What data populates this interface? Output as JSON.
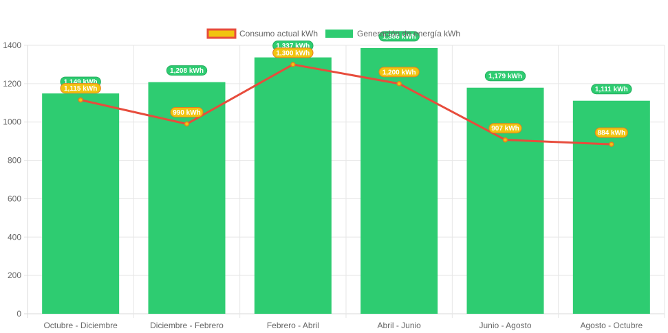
{
  "chart_data": {
    "type": "bar",
    "title": "",
    "xlabel": "",
    "ylabel": "",
    "categories": [
      "Octubre - Diciembre",
      "Diciembre - Febrero",
      "Febrero - Abril",
      "Abril - Junio",
      "Junio - Agosto",
      "Agosto - Octubre"
    ],
    "ylim": [
      0,
      1400
    ],
    "yticks": [
      0,
      200,
      400,
      600,
      800,
      1000,
      1200,
      1400
    ],
    "ytick_labels": [
      "0",
      "200",
      "400",
      "600",
      "800",
      "1000",
      "1200",
      "1400"
    ],
    "grid": true,
    "legend_position": "top",
    "series": [
      {
        "name": "Consumo actual kWh",
        "type": "line",
        "color": "#e74c3c",
        "label_color": "#f1c40f",
        "label_border": "#e67e22",
        "values": [
          1115,
          990,
          1300,
          1200,
          907,
          884
        ],
        "data_labels": [
          "1,115 kWh",
          "990 kWh",
          "1,300 kWh",
          "1,200 kWh",
          "907 kWh",
          "884 kWh"
        ]
      },
      {
        "name": "Generación de energía kWh",
        "type": "bar",
        "color": "#2ecc71",
        "label_color": "#2ecc71",
        "values": [
          1149,
          1208,
          1337,
          1386,
          1179,
          1111
        ],
        "data_labels": [
          "1,149 kWh",
          "1,208 kWh",
          "1,337 kWh",
          "1,386 kWh",
          "1,179 kWh",
          "1,111 kWh"
        ]
      }
    ]
  }
}
